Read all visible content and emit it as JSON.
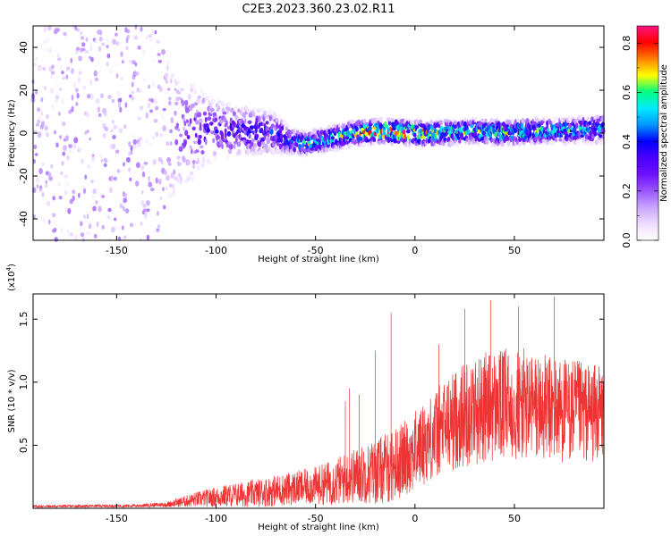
{
  "title": "C2E3.2023.360.23.02.R11",
  "colors": {
    "snr_line": "#ee3333",
    "colormap": [
      "#ffffff",
      "#eedcff",
      "#c9a4ff",
      "#9a55ff",
      "#7010ff",
      "#4a00ff",
      "#0000ff",
      "#0096ff",
      "#00eaff",
      "#00ff80",
      "#ffff00",
      "#ff8000",
      "#ff0000",
      "#ff1480"
    ]
  },
  "chart_data": [
    {
      "type": "heatmap",
      "xlabel": "Height of straight line (km)",
      "ylabel": "Frequency (Hz)",
      "xlim": [
        -192,
        95
      ],
      "ylim": [
        -50,
        50
      ],
      "xticks": [
        -150,
        -100,
        -50,
        0,
        50
      ],
      "xtick_labels": [
        "-150",
        "-100",
        "-50",
        "0",
        "50"
      ],
      "yticks": [
        -40,
        -20,
        0,
        20,
        40
      ],
      "ytick_labels": [
        "-40",
        "-20",
        "0",
        "20",
        "40"
      ],
      "colorbar": {
        "label": "Normalized spectral amplitude",
        "range": [
          0,
          0.87
        ],
        "ticks": [
          0.0,
          0.2,
          0.4,
          0.6,
          0.8
        ],
        "tick_labels": [
          "0.0",
          "0.2",
          "0.4",
          "0.6",
          "0.8"
        ]
      },
      "ridge": {
        "x": [
          -192,
          -130,
          -120,
          -100,
          -70,
          -62,
          -55,
          -45,
          -30,
          -15,
          0,
          15,
          30,
          45,
          60,
          75,
          95
        ],
        "center_hz": [
          0,
          0,
          0,
          2,
          0,
          -4,
          -5,
          -3,
          0,
          1,
          0,
          0,
          1,
          0,
          1,
          1,
          2
        ],
        "halfwidth_hz": [
          50,
          50,
          30,
          14,
          10,
          6,
          6,
          6,
          6,
          6,
          6,
          6,
          6,
          6,
          6,
          6,
          7
        ],
        "peak_amplitude": [
          0.12,
          0.15,
          0.2,
          0.3,
          0.35,
          0.45,
          0.55,
          0.5,
          0.6,
          0.75,
          0.7,
          0.6,
          0.55,
          0.6,
          0.55,
          0.5,
          0.45
        ]
      }
    },
    {
      "type": "line",
      "xlabel": "Height of straight line (km)",
      "ylabel": "SNR (10 * v/v)",
      "y_multiplier": "(x10",
      "y_multiplier_exp": "4",
      "y_multiplier_close": ")",
      "xlim": [
        -192,
        95
      ],
      "ylim": [
        0,
        17000
      ],
      "xticks": [
        -150,
        -100,
        -50,
        0,
        50
      ],
      "xtick_labels": [
        "-150",
        "-100",
        "-50",
        "0",
        "50"
      ],
      "yticks": [
        5000,
        10000,
        15000
      ],
      "ytick_labels": [
        "0.5",
        "1.0",
        "1.5"
      ],
      "series": [
        {
          "envelope_x": [
            -192,
            -140,
            -125,
            -110,
            -95,
            -80,
            -65,
            -50,
            -40,
            -30,
            -20,
            -12,
            -5,
            5,
            15,
            25,
            35,
            45,
            55,
            65,
            75,
            85,
            95
          ],
          "envelope_mean": [
            150,
            200,
            300,
            700,
            1000,
            1200,
            1500,
            1800,
            2100,
            2600,
            2900,
            3300,
            4000,
            5200,
            6500,
            7500,
            8000,
            8200,
            8200,
            7900,
            7800,
            7600,
            7500
          ],
          "envelope_spread": [
            100,
            120,
            200,
            600,
            900,
            1100,
            1300,
            1500,
            1900,
            2200,
            2600,
            2900,
            3000,
            3300,
            3800,
            4200,
            4400,
            4500,
            4500,
            4300,
            4200,
            4000,
            3800
          ],
          "spikes": [
            [
              -12,
              15500
            ],
            [
              -20,
              12500
            ],
            [
              -33,
              9500
            ],
            [
              -35,
              8500
            ],
            [
              -28,
              9000
            ],
            [
              38,
              16500
            ],
            [
              52,
              16000
            ],
            [
              70,
              16800
            ],
            [
              25,
              15800
            ],
            [
              12,
              13000
            ]
          ]
        }
      ]
    }
  ]
}
